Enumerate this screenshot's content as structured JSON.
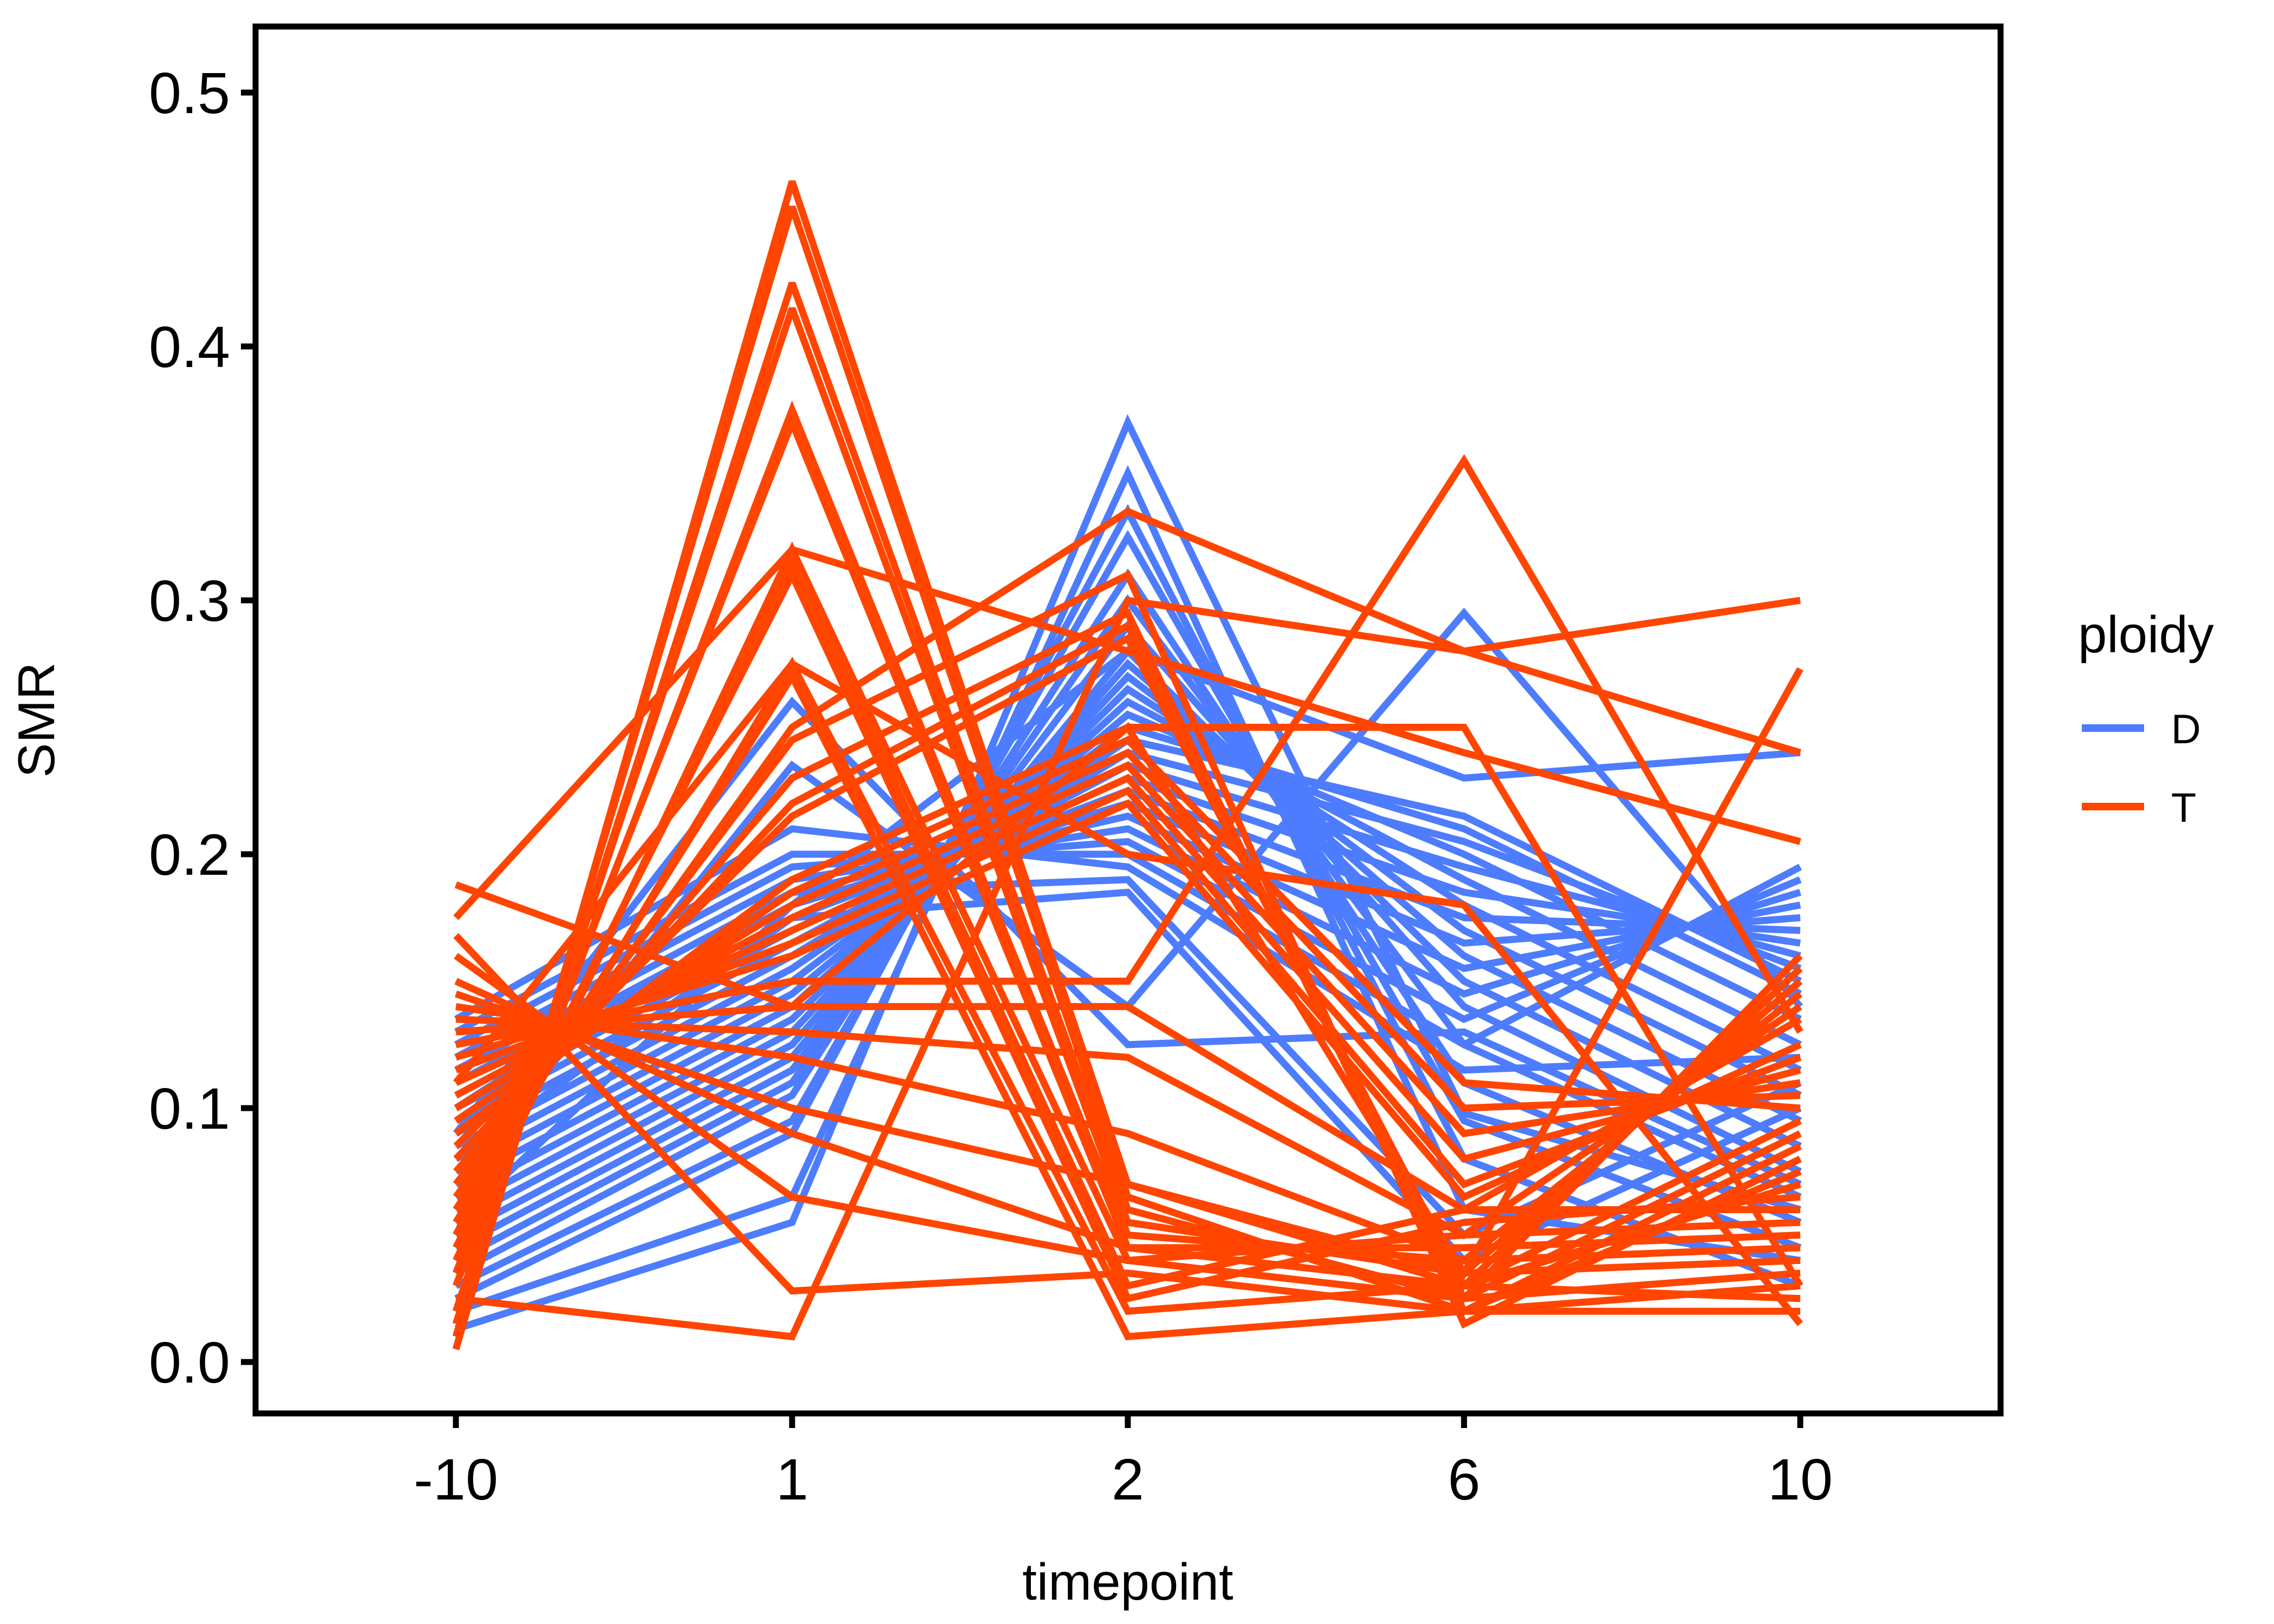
{
  "chart_data": {
    "type": "line",
    "title": "",
    "xlabel": "timepoint",
    "ylabel": "SMR",
    "categories": [
      "-10",
      "1",
      "2",
      "6",
      "10"
    ],
    "ylim": [
      -0.024,
      0.524
    ],
    "yticks": [
      0.0,
      0.1,
      0.2,
      0.3,
      0.4,
      0.5
    ],
    "ytick_labels": [
      "0.0",
      "0.1",
      "0.2",
      "0.3",
      "0.4",
      "0.5"
    ],
    "grid": false,
    "legend": {
      "title": "ploidy",
      "position": "right",
      "entries": [
        {
          "label": "D",
          "color": "#4d7cfe"
        },
        {
          "label": "T",
          "color": "#ff4500"
        }
      ]
    },
    "series": [
      {
        "group": "D",
        "color": "#4d7cfe",
        "values": [
          0.013,
          0.055,
          0.37,
          0.098,
          0.06
        ]
      },
      {
        "group": "D",
        "color": "#4d7cfe",
        "values": [
          0.02,
          0.065,
          0.35,
          0.06,
          0.04
        ]
      },
      {
        "group": "D",
        "color": "#4d7cfe",
        "values": [
          0.025,
          0.09,
          0.335,
          0.08,
          0.03
        ]
      },
      {
        "group": "D",
        "color": "#4d7cfe",
        "values": [
          0.03,
          0.095,
          0.325,
          0.095,
          0.045
        ]
      },
      {
        "group": "D",
        "color": "#4d7cfe",
        "values": [
          0.035,
          0.105,
          0.31,
          0.11,
          0.055
        ]
      },
      {
        "group": "D",
        "color": "#4d7cfe",
        "values": [
          0.04,
          0.11,
          0.3,
          0.125,
          0.065
        ]
      },
      {
        "group": "D",
        "color": "#4d7cfe",
        "values": [
          0.045,
          0.115,
          0.29,
          0.14,
          0.075
        ]
      },
      {
        "group": "D",
        "color": "#4d7cfe",
        "values": [
          0.05,
          0.12,
          0.28,
          0.15,
          0.085
        ]
      },
      {
        "group": "D",
        "color": "#4d7cfe",
        "values": [
          0.055,
          0.125,
          0.275,
          0.16,
          0.095
        ]
      },
      {
        "group": "D",
        "color": "#4d7cfe",
        "values": [
          0.06,
          0.13,
          0.27,
          0.17,
          0.105
        ]
      },
      {
        "group": "D",
        "color": "#4d7cfe",
        "values": [
          0.065,
          0.135,
          0.265,
          0.18,
          0.115
        ]
      },
      {
        "group": "D",
        "color": "#4d7cfe",
        "values": [
          0.07,
          0.14,
          0.26,
          0.19,
          0.125
        ]
      },
      {
        "group": "D",
        "color": "#4d7cfe",
        "values": [
          0.075,
          0.145,
          0.255,
          0.2,
          0.135
        ]
      },
      {
        "group": "D",
        "color": "#4d7cfe",
        "values": [
          0.08,
          0.15,
          0.25,
          0.21,
          0.145
        ]
      },
      {
        "group": "D",
        "color": "#4d7cfe",
        "values": [
          0.085,
          0.155,
          0.245,
          0.215,
          0.15
        ]
      },
      {
        "group": "D",
        "color": "#4d7cfe",
        "values": [
          0.09,
          0.16,
          0.24,
          0.205,
          0.155
        ]
      },
      {
        "group": "D",
        "color": "#4d7cfe",
        "values": [
          0.095,
          0.165,
          0.235,
          0.195,
          0.16
        ]
      },
      {
        "group": "D",
        "color": "#4d7cfe",
        "values": [
          0.1,
          0.17,
          0.23,
          0.185,
          0.165
        ]
      },
      {
        "group": "D",
        "color": "#4d7cfe",
        "values": [
          0.105,
          0.175,
          0.225,
          0.175,
          0.17
        ]
      },
      {
        "group": "D",
        "color": "#4d7cfe",
        "values": [
          0.11,
          0.18,
          0.22,
          0.165,
          0.175
        ]
      },
      {
        "group": "D",
        "color": "#4d7cfe",
        "values": [
          0.115,
          0.185,
          0.215,
          0.155,
          0.18
        ]
      },
      {
        "group": "D",
        "color": "#4d7cfe",
        "values": [
          0.12,
          0.19,
          0.21,
          0.145,
          0.185
        ]
      },
      {
        "group": "D",
        "color": "#4d7cfe",
        "values": [
          0.125,
          0.195,
          0.205,
          0.135,
          0.19
        ]
      },
      {
        "group": "D",
        "color": "#4d7cfe",
        "values": [
          0.13,
          0.2,
          0.2,
          0.125,
          0.195
        ]
      },
      {
        "group": "D",
        "color": "#4d7cfe",
        "values": [
          0.135,
          0.21,
          0.195,
          0.115,
          0.12
        ]
      },
      {
        "group": "D",
        "color": "#4d7cfe",
        "values": [
          0.09,
          0.26,
          0.125,
          0.13,
          0.07
        ]
      },
      {
        "group": "D",
        "color": "#4d7cfe",
        "values": [
          0.07,
          0.235,
          0.14,
          0.295,
          0.14
        ]
      },
      {
        "group": "D",
        "color": "#4d7cfe",
        "values": [
          0.055,
          0.18,
          0.28,
          0.23,
          0.24
        ]
      },
      {
        "group": "D",
        "color": "#4d7cfe",
        "values": [
          0.1,
          0.185,
          0.19,
          0.05,
          0.11
        ]
      },
      {
        "group": "D",
        "color": "#4d7cfe",
        "values": [
          0.08,
          0.175,
          0.185,
          0.04,
          0.1
        ]
      },
      {
        "group": "T",
        "color": "#ff4500",
        "values": [
          0.005,
          0.465,
          0.07,
          0.03,
          0.025
        ]
      },
      {
        "group": "T",
        "color": "#ff4500",
        "values": [
          0.01,
          0.455,
          0.065,
          0.02,
          0.03
        ]
      },
      {
        "group": "T",
        "color": "#ff4500",
        "values": [
          0.015,
          0.425,
          0.06,
          0.025,
          0.035
        ]
      },
      {
        "group": "T",
        "color": "#ff4500",
        "values": [
          0.02,
          0.415,
          0.055,
          0.035,
          0.04
        ]
      },
      {
        "group": "T",
        "color": "#ff4500",
        "values": [
          0.03,
          0.375,
          0.05,
          0.04,
          0.045
        ]
      },
      {
        "group": "T",
        "color": "#ff4500",
        "values": [
          0.035,
          0.37,
          0.045,
          0.045,
          0.05
        ]
      },
      {
        "group": "T",
        "color": "#ff4500",
        "values": [
          0.04,
          0.32,
          0.04,
          0.05,
          0.055
        ]
      },
      {
        "group": "T",
        "color": "#ff4500",
        "values": [
          0.045,
          0.315,
          0.03,
          0.06,
          0.06
        ]
      },
      {
        "group": "T",
        "color": "#ff4500",
        "values": [
          0.05,
          0.31,
          0.025,
          0.055,
          0.065
        ]
      },
      {
        "group": "T",
        "color": "#ff4500",
        "values": [
          0.055,
          0.275,
          0.02,
          0.03,
          0.07
        ]
      },
      {
        "group": "T",
        "color": "#ff4500",
        "values": [
          0.06,
          0.27,
          0.01,
          0.02,
          0.075
        ]
      },
      {
        "group": "T",
        "color": "#ff4500",
        "values": [
          0.065,
          0.25,
          0.335,
          0.28,
          0.24
        ]
      },
      {
        "group": "T",
        "color": "#ff4500",
        "values": [
          0.07,
          0.245,
          0.31,
          0.015,
          0.08
        ]
      },
      {
        "group": "T",
        "color": "#ff4500",
        "values": [
          0.075,
          0.23,
          0.295,
          0.02,
          0.085
        ]
      },
      {
        "group": "T",
        "color": "#ff4500",
        "values": [
          0.08,
          0.22,
          0.29,
          0.025,
          0.09
        ]
      },
      {
        "group": "T",
        "color": "#ff4500",
        "values": [
          0.085,
          0.215,
          0.285,
          0.03,
          0.095
        ]
      },
      {
        "group": "T",
        "color": "#ff4500",
        "values": [
          0.09,
          0.19,
          0.25,
          0.25,
          0.03
        ]
      },
      {
        "group": "T",
        "color": "#ff4500",
        "values": [
          0.095,
          0.185,
          0.245,
          0.11,
          0.1
        ]
      },
      {
        "group": "T",
        "color": "#ff4500",
        "values": [
          0.1,
          0.18,
          0.24,
          0.1,
          0.105
        ]
      },
      {
        "group": "T",
        "color": "#ff4500",
        "values": [
          0.105,
          0.175,
          0.235,
          0.09,
          0.11
        ]
      },
      {
        "group": "T",
        "color": "#ff4500",
        "values": [
          0.11,
          0.17,
          0.23,
          0.08,
          0.115
        ]
      },
      {
        "group": "T",
        "color": "#ff4500",
        "values": [
          0.115,
          0.165,
          0.225,
          0.07,
          0.12
        ]
      },
      {
        "group": "T",
        "color": "#ff4500",
        "values": [
          0.12,
          0.16,
          0.22,
          0.065,
          0.125
        ]
      },
      {
        "group": "T",
        "color": "#ff4500",
        "values": [
          0.125,
          0.15,
          0.15,
          0.355,
          0.13
        ]
      },
      {
        "group": "T",
        "color": "#ff4500",
        "values": [
          0.13,
          0.14,
          0.14,
          0.06,
          0.135
        ]
      },
      {
        "group": "T",
        "color": "#ff4500",
        "values": [
          0.135,
          0.13,
          0.12,
          0.05,
          0.14
        ]
      },
      {
        "group": "T",
        "color": "#ff4500",
        "values": [
          0.14,
          0.12,
          0.09,
          0.04,
          0.145
        ]
      },
      {
        "group": "T",
        "color": "#ff4500",
        "values": [
          0.145,
          0.1,
          0.07,
          0.035,
          0.15
        ]
      },
      {
        "group": "T",
        "color": "#ff4500",
        "values": [
          0.15,
          0.09,
          0.045,
          0.03,
          0.155
        ]
      },
      {
        "group": "T",
        "color": "#ff4500",
        "values": [
          0.16,
          0.065,
          0.04,
          0.025,
          0.16
        ]
      },
      {
        "group": "T",
        "color": "#ff4500",
        "values": [
          0.168,
          0.028,
          0.035,
          0.02,
          0.02
        ]
      },
      {
        "group": "T",
        "color": "#ff4500",
        "values": [
          0.025,
          0.01,
          0.3,
          0.28,
          0.3
        ]
      },
      {
        "group": "T",
        "color": "#ff4500",
        "values": [
          0.188,
          0.14,
          0.25,
          0.035,
          0.273
        ]
      },
      {
        "group": "T",
        "color": "#ff4500",
        "values": [
          0.175,
          0.32,
          0.28,
          0.24,
          0.205
        ]
      },
      {
        "group": "T",
        "color": "#ff4500",
        "values": [
          0.11,
          0.275,
          0.2,
          0.18,
          0.015
        ]
      }
    ]
  }
}
